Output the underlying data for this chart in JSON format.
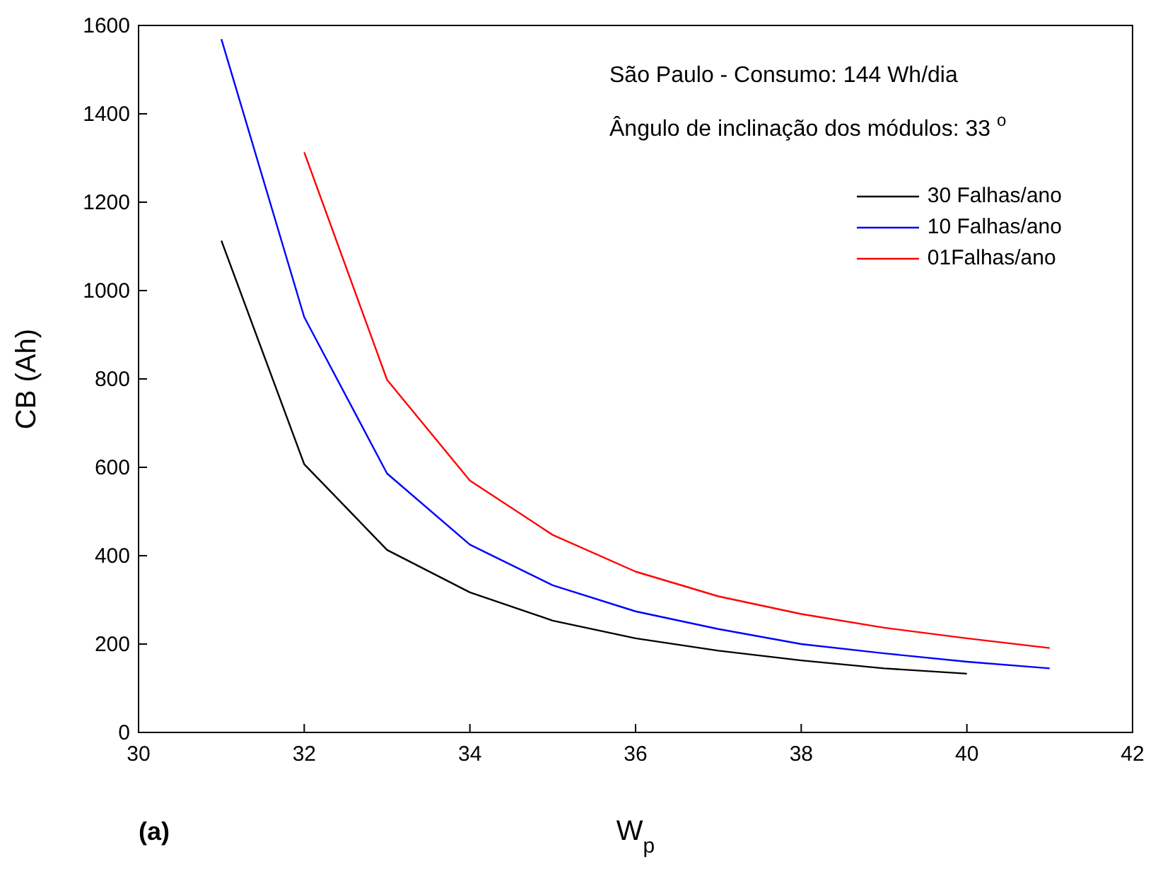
{
  "chart_data": {
    "type": "line",
    "xlabel": "W$_{p}$",
    "ylabel": "CB (Ah)",
    "annotations": [
      "São Paulo - Consumo: 144 Wh/dia",
      "Ângulo de inclinação dos módulos: 33 $^{o}$",
      "(a)"
    ],
    "x": [
      31,
      32,
      33,
      34,
      35,
      36,
      37,
      38,
      39,
      40,
      41
    ],
    "series": [
      {
        "name": "30 Falhas/ano",
        "color": "#000000",
        "values": [
          1113,
          607,
          413,
          317,
          253,
          213,
          185,
          163,
          145,
          133,
          null
        ]
      },
      {
        "name": "10 Falhas/ano",
        "color": "#0000ff",
        "values": [
          1569,
          940,
          586,
          425,
          333,
          274,
          234,
          200,
          179,
          160,
          145
        ]
      },
      {
        "name": "01Falhas/ano",
        "color": "#ff0000",
        "values": [
          null,
          1313,
          798,
          570,
          447,
          364,
          308,
          268,
          237,
          213,
          191
        ]
      }
    ],
    "xlim": [
      30,
      42
    ],
    "xticks": [
      30,
      32,
      34,
      36,
      38,
      40,
      42
    ],
    "ylim": [
      0,
      1600
    ],
    "yticks": [
      0,
      200,
      400,
      600,
      800,
      1000,
      1200,
      1400,
      1600
    ],
    "grid": false,
    "legend": "top right",
    "marker": "none",
    "line_style": "solid"
  }
}
